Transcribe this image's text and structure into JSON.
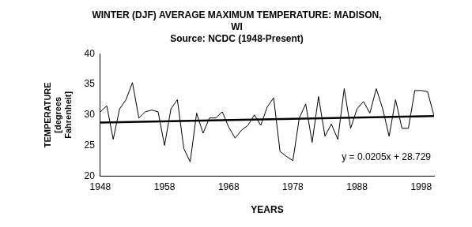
{
  "chart_data": {
    "type": "line",
    "title": "WINTER (DJF) AVERAGE MAXIMUM TEMPERATURE: MADISON, WI",
    "subtitle": "Source: NCDC (1948-Present)",
    "x_label": "YEARS",
    "y_label": [
      "TEMPERATURE",
      "[degrees",
      "Fahrenheit]"
    ],
    "x": [
      1948,
      1949,
      1950,
      1951,
      1952,
      1953,
      1954,
      1955,
      1956,
      1957,
      1958,
      1959,
      1960,
      1961,
      1962,
      1963,
      1964,
      1965,
      1966,
      1967,
      1968,
      1969,
      1970,
      1971,
      1972,
      1973,
      1974,
      1975,
      1976,
      1977,
      1978,
      1979,
      1980,
      1981,
      1982,
      1983,
      1984,
      1985,
      1986,
      1987,
      1988,
      1989,
      1990,
      1991,
      1992,
      1993,
      1994,
      1995,
      1996,
      1997,
      1998,
      1999,
      2000
    ],
    "series": [
      {
        "color": "#000000",
        "values": [
          30.5,
          31.5,
          26,
          31,
          32.5,
          35.3,
          29.5,
          30.5,
          30.8,
          30.5,
          25,
          31,
          32.5,
          24.5,
          22.3,
          30.3,
          27,
          29.5,
          29.5,
          30.5,
          28,
          26.2,
          27.5,
          28.3,
          30,
          28.3,
          31.3,
          32.8,
          24,
          23.2,
          22.5,
          29.5,
          31.8,
          25.5,
          33,
          26.5,
          28.5,
          26,
          34.3,
          27.8,
          31,
          32.2,
          30.3,
          34.3,
          31,
          26.5,
          32.5,
          27.8,
          27.8,
          34,
          34,
          33.8,
          29.8
        ]
      }
    ],
    "trendline": {
      "x": [
        1948,
        2000
      ],
      "values": [
        28.75,
        29.82
      ],
      "color": "#000000"
    },
    "annotation": "y = 0.0205x + 28.729",
    "xlim": [
      1948,
      2000
    ],
    "xticks": [
      1948,
      1958,
      1968,
      1978,
      1988,
      1998
    ],
    "ylim": [
      20,
      40
    ],
    "yticks": [
      20,
      25,
      30,
      35,
      40
    ],
    "grid": false
  }
}
